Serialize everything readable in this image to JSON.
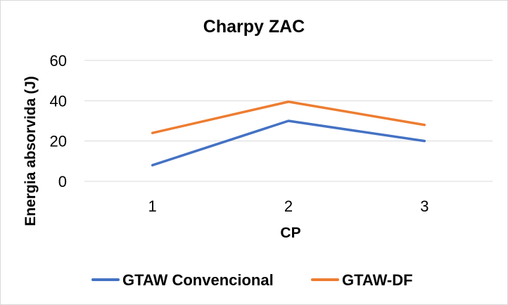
{
  "chart_data": {
    "type": "line",
    "title": "Charpy ZAC",
    "xlabel": "CP",
    "ylabel": "Energia absorvida (J)",
    "categories": [
      "1",
      "2",
      "3"
    ],
    "y_ticks": [
      "0",
      "20",
      "40",
      "60"
    ],
    "ylim": [
      0,
      60
    ],
    "grid": true,
    "legend_position": "bottom",
    "series": [
      {
        "name": "GTAW Convencional",
        "color": "#4472c4",
        "values": [
          8,
          30,
          20
        ]
      },
      {
        "name": "GTAW-DF",
        "color": "#ed7d31",
        "values": [
          24,
          39.5,
          28
        ]
      }
    ]
  }
}
